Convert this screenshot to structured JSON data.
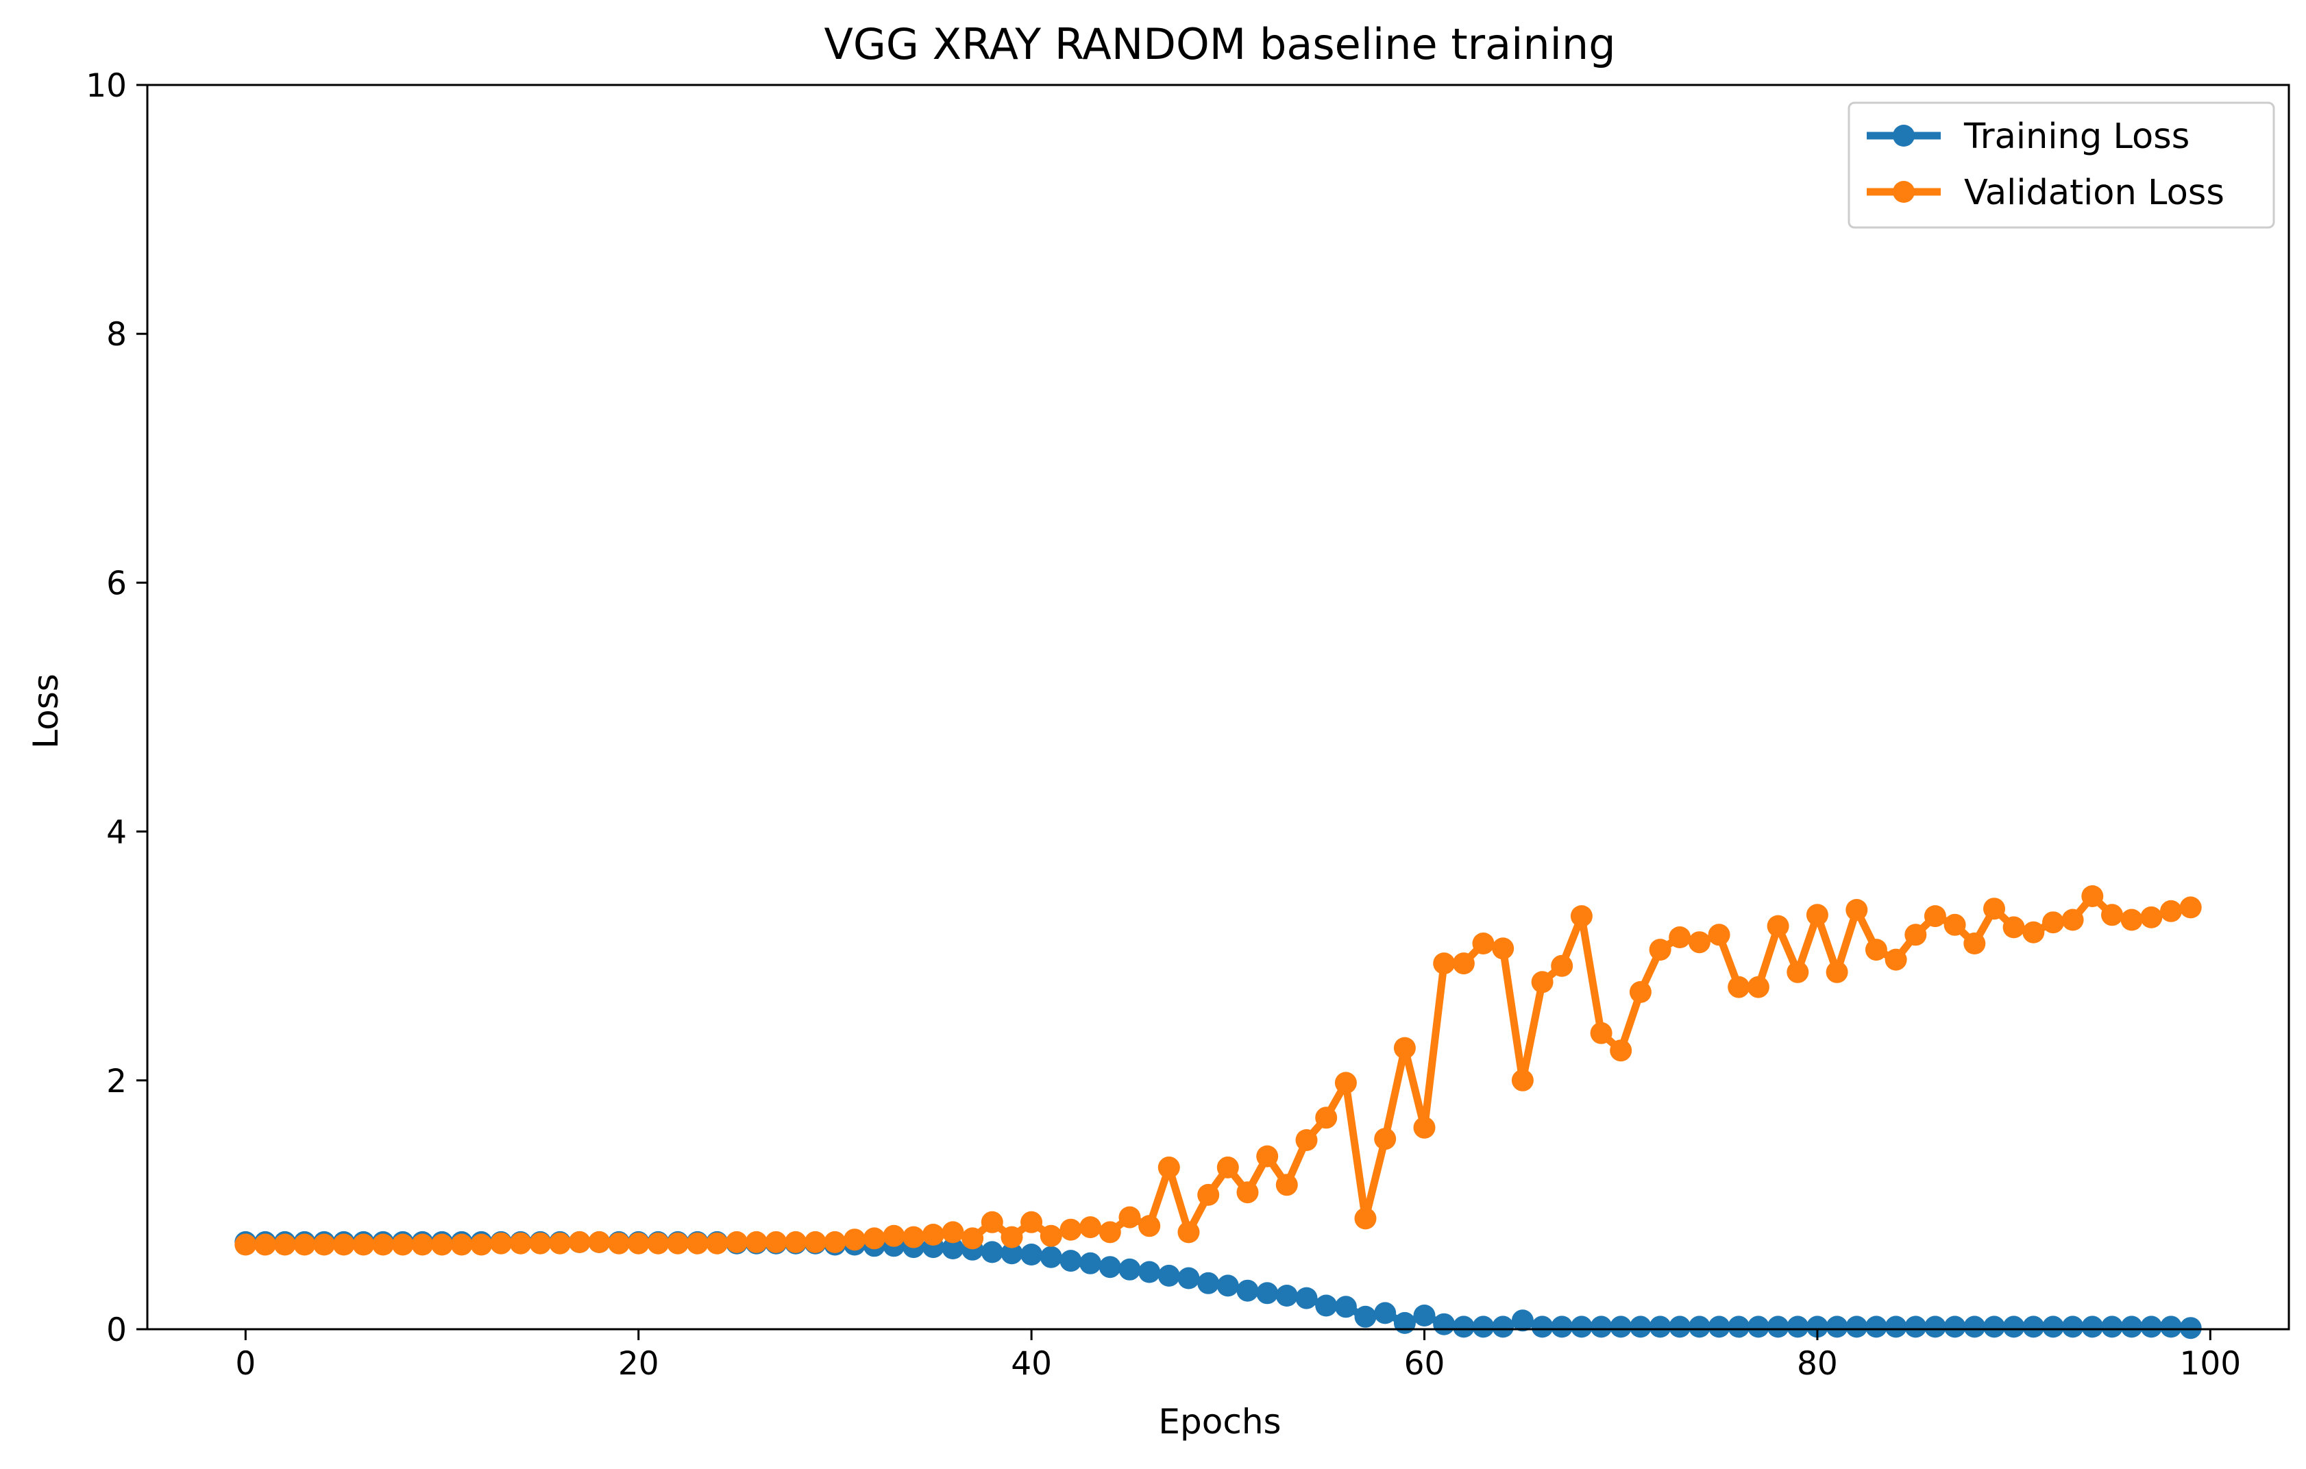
{
  "chart_data": {
    "type": "line",
    "title": "VGG XRAY RANDOM baseline training",
    "xlabel": "Epochs",
    "ylabel": "Loss",
    "xlim": [
      -5,
      104
    ],
    "ylim": [
      0,
      10
    ],
    "xticks": [
      0,
      20,
      40,
      60,
      80,
      100
    ],
    "yticks": [
      0,
      2,
      4,
      6,
      8,
      10
    ],
    "grid": false,
    "legend_position": "top-right",
    "series": [
      {
        "name": "Training Loss",
        "color": "#1f77b4",
        "values": [
          0.7,
          0.7,
          0.7,
          0.7,
          0.7,
          0.7,
          0.7,
          0.7,
          0.7,
          0.7,
          0.7,
          0.7,
          0.7,
          0.7,
          0.7,
          0.7,
          0.7,
          0.7,
          0.7,
          0.7,
          0.7,
          0.7,
          0.7,
          0.7,
          0.7,
          0.69,
          0.69,
          0.69,
          0.69,
          0.69,
          0.68,
          0.68,
          0.67,
          0.67,
          0.66,
          0.66,
          0.65,
          0.64,
          0.62,
          0.61,
          0.6,
          0.58,
          0.55,
          0.53,
          0.5,
          0.48,
          0.46,
          0.43,
          0.41,
          0.37,
          0.35,
          0.31,
          0.29,
          0.27,
          0.25,
          0.19,
          0.18,
          0.1,
          0.13,
          0.05,
          0.11,
          0.04,
          0.02,
          0.02,
          0.02,
          0.07,
          0.02,
          0.02,
          0.02,
          0.02,
          0.02,
          0.02,
          0.02,
          0.02,
          0.02,
          0.02,
          0.02,
          0.02,
          0.02,
          0.02,
          0.02,
          0.02,
          0.02,
          0.02,
          0.02,
          0.02,
          0.02,
          0.02,
          0.02,
          0.02,
          0.02,
          0.02,
          0.02,
          0.02,
          0.02,
          0.02,
          0.02,
          0.02,
          0.02,
          0.01
        ]
      },
      {
        "name": "Validation Loss",
        "color": "#ff7f0e",
        "values": [
          0.68,
          0.68,
          0.68,
          0.68,
          0.68,
          0.68,
          0.68,
          0.68,
          0.68,
          0.68,
          0.68,
          0.68,
          0.68,
          0.69,
          0.69,
          0.69,
          0.69,
          0.7,
          0.7,
          0.69,
          0.69,
          0.69,
          0.69,
          0.69,
          0.69,
          0.7,
          0.7,
          0.7,
          0.7,
          0.7,
          0.7,
          0.72,
          0.73,
          0.75,
          0.74,
          0.76,
          0.78,
          0.73,
          0.86,
          0.74,
          0.86,
          0.75,
          0.8,
          0.82,
          0.78,
          0.9,
          0.83,
          1.3,
          0.78,
          1.08,
          1.3,
          1.1,
          1.39,
          1.16,
          1.52,
          1.7,
          1.98,
          0.89,
          1.53,
          2.26,
          1.62,
          2.94,
          2.94,
          3.1,
          3.06,
          2.0,
          2.79,
          2.92,
          3.32,
          2.38,
          2.24,
          2.71,
          3.05,
          3.15,
          3.11,
          3.17,
          2.75,
          2.75,
          3.24,
          2.87,
          3.33,
          2.87,
          3.37,
          3.05,
          2.97,
          3.17,
          3.32,
          3.25,
          3.1,
          3.38,
          3.23,
          3.19,
          3.27,
          3.29,
          3.48,
          3.33,
          3.29,
          3.31,
          3.36,
          3.39
        ]
      }
    ]
  }
}
